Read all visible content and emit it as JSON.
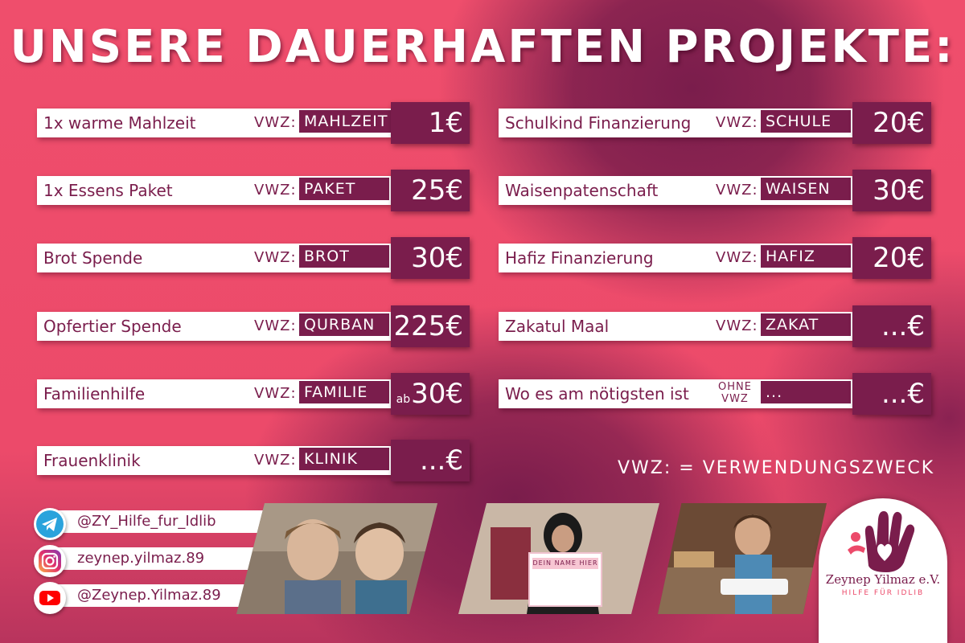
{
  "title": "UNSERE DAUERHAFTEN PROJEKTE:",
  "left_projects": [
    {
      "name": "1x warme Mahlzeit",
      "vwz": "VWZ:",
      "code": "MAHLZEIT",
      "price": "1€"
    },
    {
      "name": "1x Essens Paket",
      "vwz": "VWZ:",
      "code": "PAKET",
      "price": "25€"
    },
    {
      "name": "Brot Spende",
      "vwz": "VWZ:",
      "code": "BROT",
      "price": "30€"
    },
    {
      "name": "Opfertier Spende",
      "vwz": "VWZ:",
      "code": "QURBAN",
      "price": "225€"
    },
    {
      "name": "Familienhilfe",
      "vwz": "VWZ:",
      "code": "FAMILIE",
      "price_prefix": "ab",
      "price": "30€"
    },
    {
      "name": "Frauenklinik",
      "vwz": "VWZ:",
      "code": "KLINIK",
      "price": "...€"
    }
  ],
  "right_projects": [
    {
      "name": "Schulkind Finanzierung",
      "vwz": "VWZ:",
      "code": "SCHULE",
      "price": "20€"
    },
    {
      "name": "Waisenpatenschaft",
      "vwz": "VWZ:",
      "code": "WAISEN",
      "price": "30€"
    },
    {
      "name": "Hafiz Finanzierung",
      "vwz": "VWZ:",
      "code": "HAFIZ",
      "price": "20€"
    },
    {
      "name": "Zakatul Maal",
      "vwz": "VWZ:",
      "code": "ZAKAT",
      "price": "...€"
    },
    {
      "name": "Wo es am nötigsten ist",
      "vwz_line1": "OHNE",
      "vwz_line2": "VWZ",
      "code": "...",
      "price": "...€"
    }
  ],
  "legend": "VWZ: = VERWENDUNGSZWECK",
  "social": {
    "telegram": "@ZY_Hilfe_fur_Idlib",
    "instagram": "zeynep.yilmaz.89",
    "youtube": "@Zeynep.Yilmaz.89"
  },
  "photo2_sign": "DEIN NAME HIER",
  "logo": {
    "name": "Zeynep Yilmaz e.V.",
    "subtitle": "HILFE FÜR IDLIB"
  },
  "colors": {
    "background": "#ec4a6a",
    "accent": "#7a1d4c",
    "white": "#ffffff"
  }
}
